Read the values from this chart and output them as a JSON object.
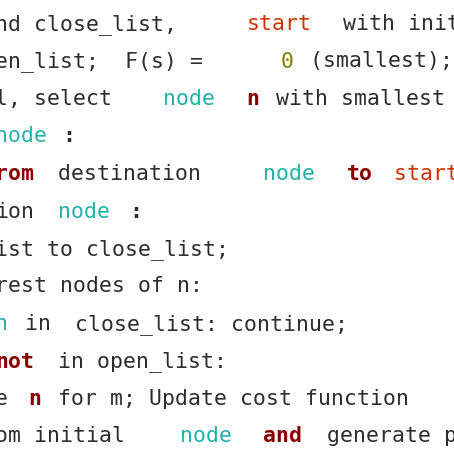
{
  "bg_color": "#ffffff",
  "font_family": "monospace",
  "font_size": 15.5,
  "figsize": [
    4.54,
    4.54
  ],
  "dpi": 100,
  "lines": [
    [
      {
        "text": "nd close_list, ",
        "color": "#2d2d2d",
        "weight": "normal"
      },
      {
        "text": "start",
        "color": "#cc3300",
        "weight": "normal"
      },
      {
        "text": " with initi",
        "color": "#2d2d2d",
        "weight": "normal"
      }
    ],
    [
      {
        "text": "en_list;  F(s) = ",
        "color": "#2d2d2d",
        "weight": "normal"
      },
      {
        "text": "0",
        "color": "#808000",
        "weight": "normal"
      },
      {
        "text": " (smallest);",
        "color": "#2d2d2d",
        "weight": "normal"
      }
    ],
    [
      {
        "text": "l, select ",
        "color": "#2d2d2d",
        "weight": "normal"
      },
      {
        "text": "node",
        "color": "#20b2aa",
        "weight": "normal"
      },
      {
        "text": " ",
        "color": "#2d2d2d",
        "weight": "normal"
      },
      {
        "text": "n",
        "color": "#8b0000",
        "weight": "bold"
      },
      {
        "text": " with smallest",
        "color": "#2d2d2d",
        "weight": "normal"
      }
    ],
    [
      {
        "text": "node",
        "color": "#20b2aa",
        "weight": "normal"
      },
      {
        "text": ":",
        "color": "#2d2d2d",
        "weight": "bold"
      }
    ],
    [
      {
        "text": "rom",
        "color": "#8b0000",
        "weight": "bold"
      },
      {
        "text": " destination ",
        "color": "#2d2d2d",
        "weight": "normal"
      },
      {
        "text": "node",
        "color": "#20b2aa",
        "weight": "normal"
      },
      {
        "text": " ",
        "color": "#2d2d2d",
        "weight": "normal"
      },
      {
        "text": "to",
        "color": "#8b0000",
        "weight": "bold"
      },
      {
        "text": " start n",
        "color": "#cc3300",
        "weight": "normal"
      }
    ],
    [
      {
        "text": "ion",
        "color": "#2d2d2d",
        "weight": "normal"
      },
      {
        "text": " node",
        "color": "#20b2aa",
        "weight": "normal"
      },
      {
        "text": ":",
        "color": "#2d2d2d",
        "weight": "bold"
      }
    ],
    [
      {
        "text": "ist to close_list;",
        "color": "#2d2d2d",
        "weight": "normal"
      }
    ],
    [
      {
        "text": "rest nodes of n:",
        "color": "#2d2d2d",
        "weight": "normal"
      }
    ],
    [
      {
        "text": "n",
        "color": "#20b2aa",
        "weight": "normal"
      },
      {
        "text": " in",
        "color": "#2d2d2d",
        "weight": "normal"
      },
      {
        "text": " close_list: continue;",
        "color": "#2d2d2d",
        "weight": "normal"
      }
    ],
    [
      {
        "text": "not",
        "color": "#8b0000",
        "weight": "bold"
      },
      {
        "text": " in open_list:",
        "color": "#2d2d2d",
        "weight": "normal"
      }
    ],
    [
      {
        "text": "e ",
        "color": "#2d2d2d",
        "weight": "normal"
      },
      {
        "text": "n",
        "color": "#8b0000",
        "weight": "bold"
      },
      {
        "text": " for m; Update cost function",
        "color": "#2d2d2d",
        "weight": "normal"
      }
    ],
    [
      {
        "text": "om initial ",
        "color": "#2d2d2d",
        "weight": "normal"
      },
      {
        "text": "node",
        "color": "#20b2aa",
        "weight": "normal"
      },
      {
        "text": " ",
        "color": "#2d2d2d",
        "weight": "normal"
      },
      {
        "text": "and",
        "color": "#8b0000",
        "weight": "bold"
      },
      {
        "text": " generate pa",
        "color": "#2d2d2d",
        "weight": "normal"
      }
    ]
  ]
}
